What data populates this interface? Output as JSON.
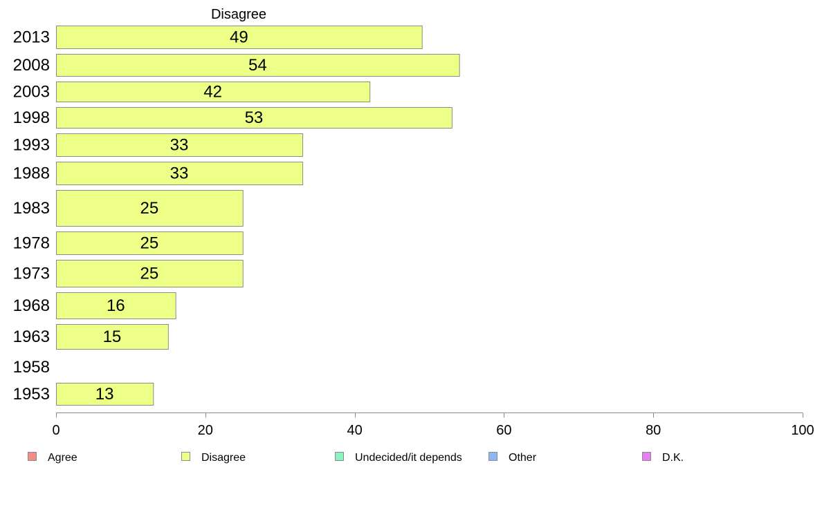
{
  "chart_data": {
    "type": "bar",
    "orientation": "horizontal",
    "title": "Disagree",
    "categories": [
      "2013",
      "2008",
      "2003",
      "1998",
      "1993",
      "1988",
      "1983",
      "1978",
      "1973",
      "1968",
      "1963",
      "1958",
      "1953"
    ],
    "series": [
      {
        "name": "Disagree",
        "values": [
          49,
          54,
          42,
          53,
          33,
          33,
          25,
          25,
          25,
          16,
          15,
          null,
          13
        ],
        "color": "#eeff88"
      }
    ],
    "xlim": [
      0,
      100
    ],
    "xticks": [
      0,
      20,
      40,
      60,
      80,
      100
    ],
    "grid": false,
    "legend_position": "bottom",
    "legend": [
      {
        "label": "Agree",
        "color": "#f28c84"
      },
      {
        "label": "Disagree",
        "color": "#eeff88"
      },
      {
        "label": "Undecided/it depends",
        "color": "#88f5bf"
      },
      {
        "label": "Other",
        "color": "#8db8f5"
      },
      {
        "label": "D.K.",
        "color": "#e680f0"
      }
    ]
  }
}
